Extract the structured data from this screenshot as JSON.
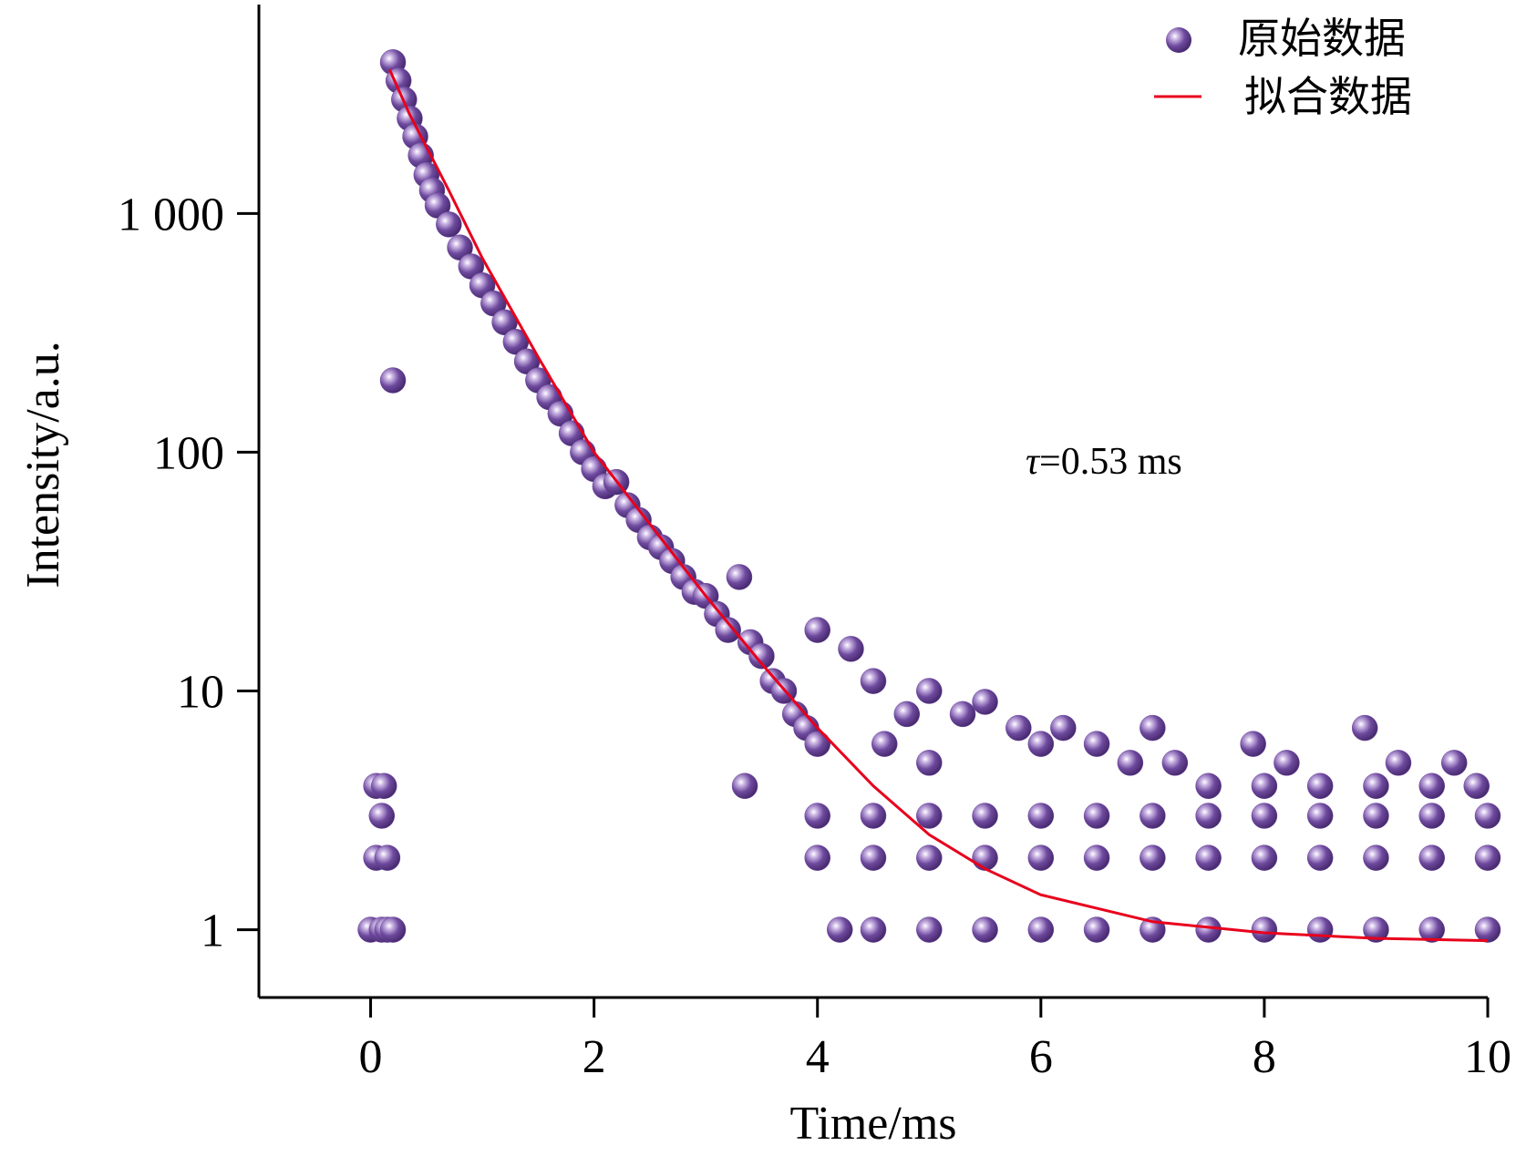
{
  "chart_data": {
    "type": "scatter",
    "xlabel": "Time/ms",
    "ylabel": "Intensity/a.u.",
    "xlim": [
      -1,
      10
    ],
    "ylim": [
      0.52,
      7500
    ],
    "y_scale": "log",
    "x_ticks": [
      0,
      2,
      4,
      6,
      8,
      10
    ],
    "x_tick_labels": [
      "0",
      "2",
      "4",
      "6",
      "8",
      "10"
    ],
    "y_ticks": [
      1,
      10,
      100,
      1000
    ],
    "y_tick_labels": [
      "1",
      "10",
      "100",
      "1 000"
    ],
    "grid": false,
    "legend_position": "top-right",
    "annotation": {
      "symbol": "τ",
      "text": "=0.53 ms"
    },
    "colors": {
      "raw": "#6e4a9e",
      "fit": "#e8001c"
    },
    "series": [
      {
        "name": "原始数据",
        "style": "markers",
        "points": [
          [
            0.0,
            1
          ],
          [
            0.05,
            2
          ],
          [
            0.05,
            4
          ],
          [
            0.1,
            3
          ],
          [
            0.1,
            1
          ],
          [
            0.12,
            4
          ],
          [
            0.15,
            2
          ],
          [
            0.15,
            1
          ],
          [
            0.2,
            1
          ],
          [
            0.2,
            200
          ],
          [
            0.2,
            4300
          ],
          [
            0.25,
            3600
          ],
          [
            0.3,
            3000
          ],
          [
            0.35,
            2500
          ],
          [
            0.4,
            2100
          ],
          [
            0.45,
            1750
          ],
          [
            0.5,
            1450
          ],
          [
            0.55,
            1250
          ],
          [
            0.6,
            1080
          ],
          [
            0.7,
            900
          ],
          [
            0.8,
            720
          ],
          [
            0.9,
            600
          ],
          [
            1.0,
            500
          ],
          [
            1.1,
            420
          ],
          [
            1.2,
            350
          ],
          [
            1.3,
            290
          ],
          [
            1.4,
            240
          ],
          [
            1.5,
            200
          ],
          [
            1.6,
            170
          ],
          [
            1.7,
            145
          ],
          [
            1.8,
            120
          ],
          [
            1.9,
            100
          ],
          [
            2.0,
            85
          ],
          [
            2.1,
            72
          ],
          [
            2.2,
            75
          ],
          [
            2.3,
            60
          ],
          [
            2.4,
            52
          ],
          [
            2.5,
            44
          ],
          [
            2.6,
            40
          ],
          [
            2.7,
            35
          ],
          [
            2.8,
            30
          ],
          [
            2.9,
            26
          ],
          [
            3.0,
            25
          ],
          [
            3.1,
            21
          ],
          [
            3.2,
            18
          ],
          [
            3.3,
            30
          ],
          [
            3.35,
            4
          ],
          [
            3.4,
            16
          ],
          [
            3.5,
            14
          ],
          [
            3.6,
            11
          ],
          [
            3.7,
            10
          ],
          [
            3.8,
            8
          ],
          [
            3.9,
            7
          ],
          [
            4.0,
            18
          ],
          [
            4.0,
            6
          ],
          [
            4.0,
            2
          ],
          [
            4.2,
            1
          ],
          [
            4.3,
            15
          ],
          [
            4.5,
            11
          ],
          [
            4.6,
            6
          ],
          [
            4.8,
            8
          ],
          [
            5.0,
            10
          ],
          [
            5.0,
            5
          ],
          [
            5.3,
            8
          ],
          [
            5.5,
            9
          ],
          [
            5.8,
            7
          ],
          [
            6.0,
            6
          ],
          [
            6.2,
            7
          ],
          [
            6.5,
            6
          ],
          [
            6.8,
            5
          ],
          [
            7.0,
            7
          ],
          [
            7.2,
            5
          ],
          [
            7.5,
            4
          ],
          [
            7.9,
            6
          ],
          [
            8.0,
            4
          ],
          [
            8.2,
            5
          ],
          [
            8.5,
            4
          ],
          [
            8.9,
            7
          ],
          [
            9.0,
            4
          ],
          [
            9.2,
            5
          ],
          [
            9.5,
            4
          ],
          [
            9.7,
            5
          ],
          [
            9.9,
            4
          ],
          [
            4.0,
            3
          ],
          [
            4.5,
            3
          ],
          [
            5.0,
            3
          ],
          [
            5.5,
            3
          ],
          [
            6.0,
            3
          ],
          [
            6.5,
            3
          ],
          [
            7.0,
            3
          ],
          [
            7.5,
            3
          ],
          [
            8.0,
            3
          ],
          [
            8.5,
            3
          ],
          [
            9.0,
            3
          ],
          [
            9.5,
            3
          ],
          [
            10.0,
            3
          ],
          [
            4.5,
            2
          ],
          [
            5.0,
            2
          ],
          [
            5.5,
            2
          ],
          [
            6.0,
            2
          ],
          [
            6.5,
            2
          ],
          [
            7.0,
            2
          ],
          [
            7.5,
            2
          ],
          [
            8.0,
            2
          ],
          [
            8.5,
            2
          ],
          [
            9.0,
            2
          ],
          [
            9.5,
            2
          ],
          [
            10.0,
            2
          ],
          [
            4.5,
            1
          ],
          [
            5.0,
            1
          ],
          [
            5.5,
            1
          ],
          [
            6.0,
            1
          ],
          [
            6.5,
            1
          ],
          [
            7.0,
            1
          ],
          [
            7.5,
            1
          ],
          [
            8.0,
            1
          ],
          [
            8.5,
            1
          ],
          [
            9.0,
            1
          ],
          [
            9.5,
            1
          ],
          [
            10.0,
            1
          ]
        ]
      },
      {
        "name": "拟合数据",
        "style": "line",
        "points": [
          [
            0.17,
            4000
          ],
          [
            0.25,
            3300
          ],
          [
            0.35,
            2600
          ],
          [
            0.5,
            1900
          ],
          [
            0.7,
            1250
          ],
          [
            1.0,
            650
          ],
          [
            1.5,
            250
          ],
          [
            2.0,
            100
          ],
          [
            2.5,
            50
          ],
          [
            3.0,
            25
          ],
          [
            3.5,
            13
          ],
          [
            4.0,
            7
          ],
          [
            4.5,
            4
          ],
          [
            5.0,
            2.5
          ],
          [
            5.5,
            1.8
          ],
          [
            6.0,
            1.4
          ],
          [
            7.0,
            1.08
          ],
          [
            8.0,
            0.97
          ],
          [
            9.0,
            0.92
          ],
          [
            10.0,
            0.9
          ]
        ]
      }
    ]
  }
}
